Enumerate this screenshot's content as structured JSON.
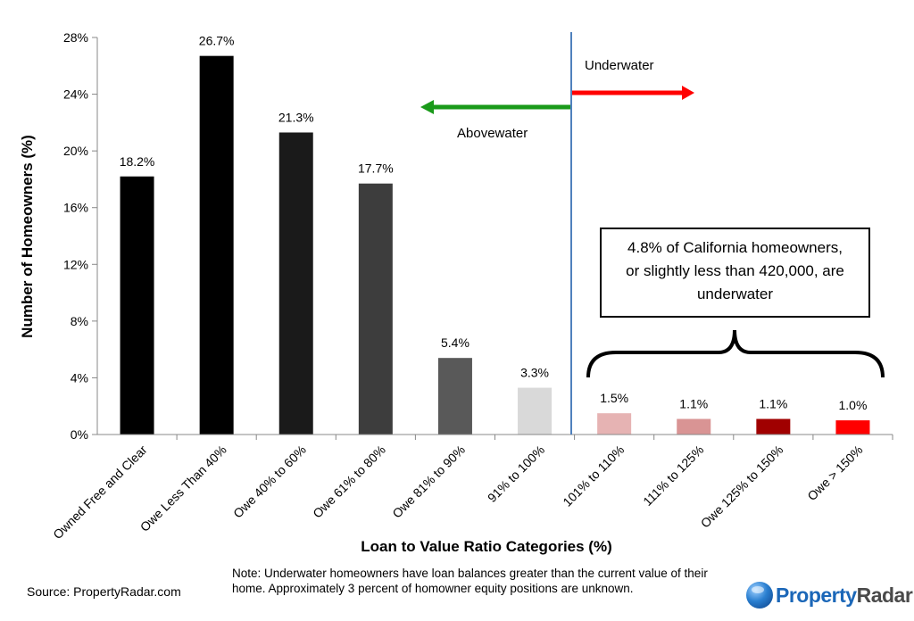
{
  "chart_data": {
    "type": "bar",
    "xlabel": "Loan to Value Ratio Categories (%)",
    "ylabel": "Number of Homeowners (%)",
    "ylim": [
      0,
      28
    ],
    "yticks": [
      "0%",
      "4%",
      "8%",
      "12%",
      "16%",
      "20%",
      "24%",
      "28%"
    ],
    "yticks_values": [
      0,
      4,
      8,
      12,
      16,
      20,
      24,
      28
    ],
    "categories": [
      "Owned Free and Clear",
      "Owe Less Than 40%",
      "Owe 40% to 60%",
      "Owe 61% to 80%",
      "Owe 81% to 90%",
      "91% to 100%",
      "101% to 110%",
      "111% to 125%",
      "Owe 125% to 150%",
      "Owe > 150%"
    ],
    "values": [
      18.2,
      26.7,
      21.3,
      17.7,
      5.4,
      3.3,
      1.5,
      1.1,
      1.1,
      1.0
    ],
    "value_labels": [
      "18.2%",
      "26.7%",
      "21.3%",
      "17.7%",
      "5.4%",
      "3.3%",
      "1.5%",
      "1.1%",
      "1.1%",
      "1.0%"
    ],
    "bar_colors": [
      "#000000",
      "#000000",
      "#1a1a1a",
      "#3d3d3d",
      "#595959",
      "#d9d9d9",
      "#e6b3b3",
      "#d99494",
      "#a00000",
      "#ff0000"
    ],
    "grid": false,
    "annotations": {
      "underwater": "Underwater",
      "abovewater": "Abovewater",
      "callout": [
        "4.8% of California homeowners,",
        "or slightly less than 420,000, are",
        "underwater"
      ],
      "underwater_arrow_color": "#ff0000",
      "abovewater_arrow_color": "#1a9a1a",
      "divider_color": "#4f81bd"
    }
  },
  "note": "Note: Underwater homeowners have loan balances greater than the current value of their home. Approximately 3 percent of homowner equity positions are unknown.",
  "source": "Source: PropertyRadar.com",
  "logo": {
    "part1": "Property",
    "part2": "Radar"
  }
}
